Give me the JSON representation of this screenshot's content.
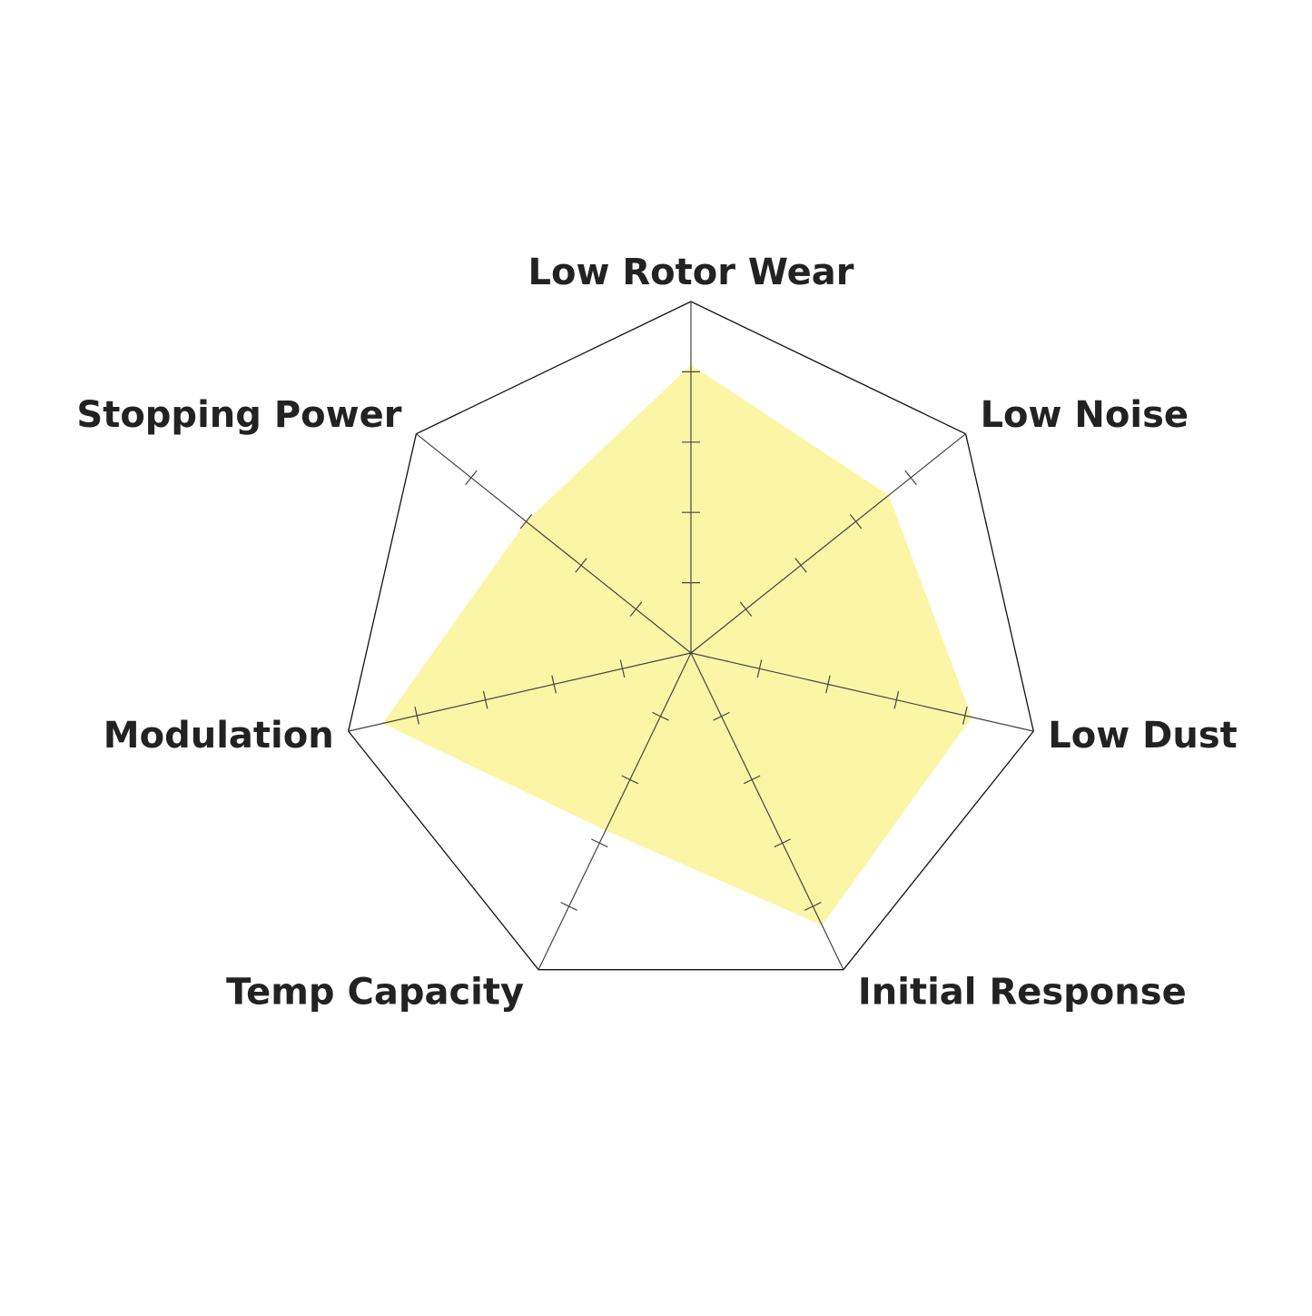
{
  "chart_data": {
    "type": "radar",
    "categories": [
      "Low Rotor Wear",
      "Low Noise",
      "Low Dust",
      "Initial Response",
      "Temp Capacity",
      "Modulation",
      "Stopping Power"
    ],
    "values": [
      4.1,
      3.6,
      4.1,
      4.3,
      2.8,
      4.5,
      3.0
    ],
    "color": "#fbf6a6",
    "rlim": [
      0,
      5
    ],
    "rticks": [
      1,
      2,
      3,
      4
    ]
  }
}
